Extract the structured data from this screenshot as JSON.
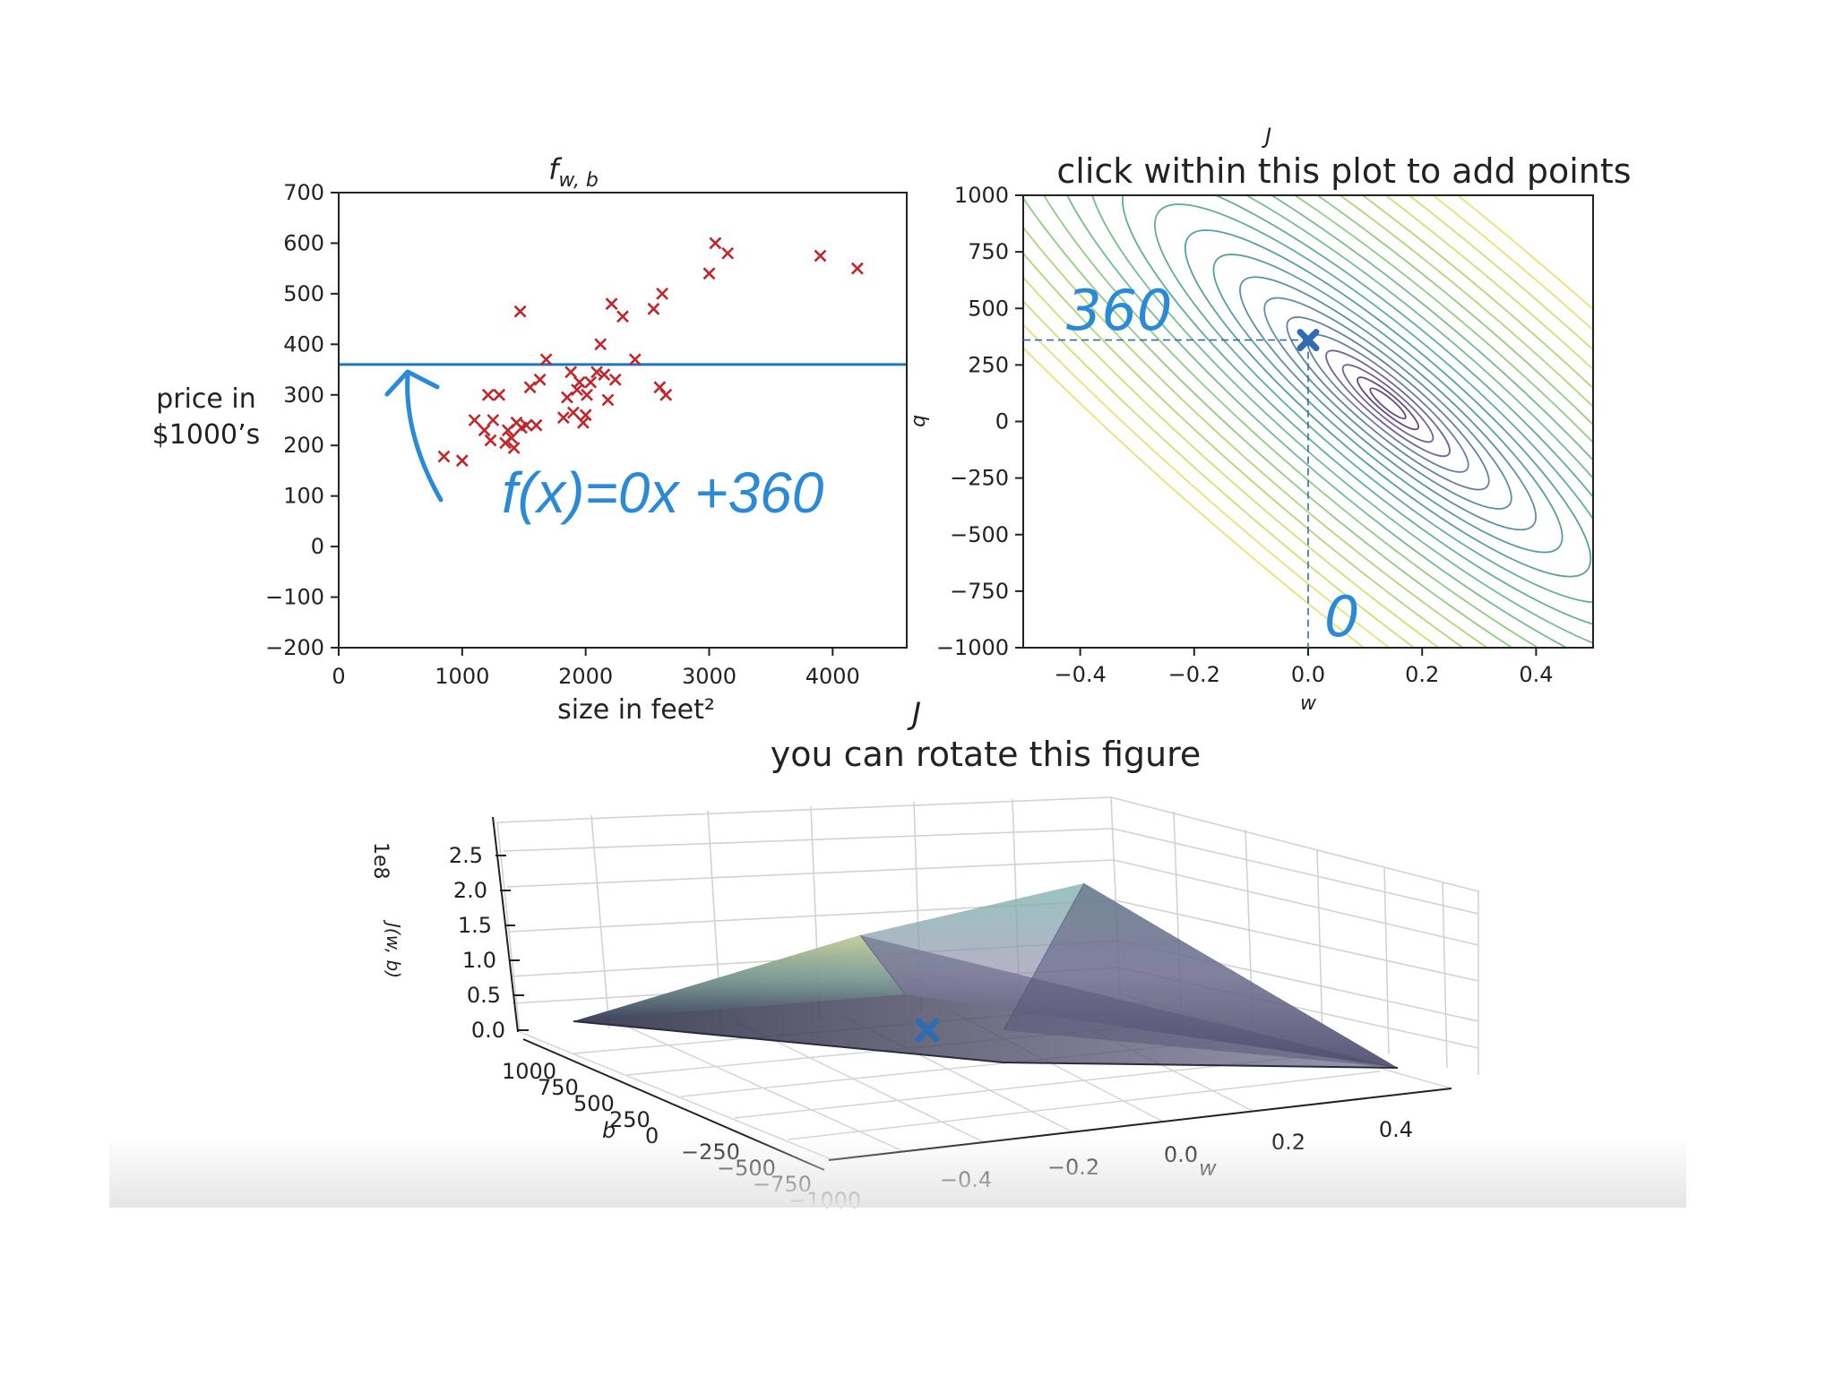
{
  "colors": {
    "scatter_marker": "#c0262b",
    "model_line": "#1f77b4",
    "handwriting": "#2a8ad6",
    "current_point": "#2f6db0",
    "contour_palette": [
      "#440154",
      "#3b528b",
      "#21918c",
      "#5ec962",
      "#fde725"
    ]
  },
  "chart_data": [
    {
      "id": "housing",
      "type": "scatter",
      "title": "f",
      "title_subscript": "w, b",
      "xlabel": "size in feet²",
      "ylabel_lines": [
        "price in",
        "$1000’s"
      ],
      "xlim": [
        0,
        4600
      ],
      "ylim": [
        -200,
        700
      ],
      "xticks": [
        0,
        1000,
        2000,
        3000,
        4000
      ],
      "xtick_labels": [
        "0",
        "1000",
        "2000",
        "3000",
        "4000"
      ],
      "yticks": [
        700,
        600,
        500,
        400,
        300,
        200,
        100,
        0,
        -100,
        -200
      ],
      "ytick_labels": [
        "700",
        "600",
        "500",
        "400",
        "300",
        "200",
        "100",
        "0",
        "−100",
        "−200"
      ],
      "points": [
        [
          852,
          178
        ],
        [
          1000,
          170
        ],
        [
          1100,
          250
        ],
        [
          1180,
          230
        ],
        [
          1210,
          300
        ],
        [
          1230,
          210
        ],
        [
          1250,
          250
        ],
        [
          1300,
          300
        ],
        [
          1350,
          205
        ],
        [
          1370,
          230
        ],
        [
          1400,
          215
        ],
        [
          1420,
          195
        ],
        [
          1440,
          245
        ],
        [
          1470,
          465
        ],
        [
          1480,
          235
        ],
        [
          1520,
          240
        ],
        [
          1550,
          315
        ],
        [
          1600,
          240
        ],
        [
          1630,
          330
        ],
        [
          1680,
          370
        ],
        [
          1820,
          255
        ],
        [
          1850,
          295
        ],
        [
          1880,
          345
        ],
        [
          1900,
          265
        ],
        [
          1930,
          310
        ],
        [
          1950,
          325
        ],
        [
          1980,
          245
        ],
        [
          2000,
          260
        ],
        [
          2010,
          300
        ],
        [
          2040,
          325
        ],
        [
          2090,
          345
        ],
        [
          2120,
          400
        ],
        [
          2150,
          340
        ],
        [
          2180,
          290
        ],
        [
          2210,
          480
        ],
        [
          2240,
          330
        ],
        [
          2300,
          455
        ],
        [
          2400,
          370
        ],
        [
          2550,
          470
        ],
        [
          2600,
          315
        ],
        [
          2620,
          500
        ],
        [
          2650,
          300
        ],
        [
          3000,
          540
        ],
        [
          3050,
          600
        ],
        [
          3150,
          580
        ],
        [
          3900,
          575
        ],
        [
          4200,
          550
        ]
      ],
      "model_line": {
        "w": 0,
        "b": 360
      },
      "annotation": "f(x)=0x +360"
    },
    {
      "id": "contour",
      "type": "contour",
      "title": "click within this plot to add points",
      "title_fragment": "J",
      "xlabel": "w",
      "ylabel": "b",
      "xlim": [
        -0.5,
        0.5
      ],
      "ylim": [
        -1000,
        1000
      ],
      "xticks": [
        -0.4,
        -0.2,
        0.0,
        0.2,
        0.4
      ],
      "xtick_labels": [
        "−0.4",
        "−0.2",
        "0.0",
        "0.2",
        "0.4"
      ],
      "yticks": [
        1000,
        750,
        500,
        250,
        0,
        -250,
        -500,
        -750,
        -1000
      ],
      "ytick_labels": [
        "1000",
        "750",
        "500",
        "250",
        "0",
        "−250",
        "−500",
        "−750",
        "−1000"
      ],
      "minimum": [
        0.14,
        80
      ],
      "current_point": [
        0.0,
        360
      ],
      "annotation_b": "360",
      "annotation_w": "0"
    },
    {
      "id": "surface",
      "type": "surface",
      "title": "you can rotate this figure",
      "title_fragment": "J",
      "xlabel": "w",
      "ylabel": "b",
      "zlabel": "J(w, b)",
      "z_offset_label": "1e8",
      "zticks": [
        "2.5",
        "2.0",
        "1.5",
        "1.0",
        "0.5",
        "0.0"
      ],
      "wticks": [
        "−0.4",
        "−0.2",
        "0.0",
        "0.2",
        "0.4"
      ],
      "bticks": [
        "1000",
        "750",
        "500",
        "250",
        "0",
        "−250",
        "−500",
        "−750",
        "−1000"
      ],
      "current_point": [
        0.0,
        360
      ]
    }
  ]
}
